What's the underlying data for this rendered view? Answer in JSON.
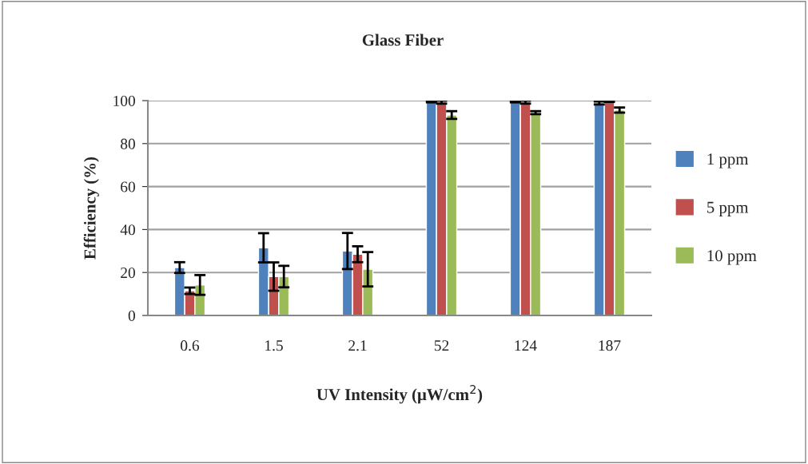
{
  "chart_data": {
    "type": "bar",
    "title": "Glass Fiber",
    "xlabel": "UV Intensity (μW/cm$^{2}$)",
    "ylabel": "Efficiency (%)",
    "categories": [
      "0.6",
      "1.5",
      "2.1",
      "52",
      "124",
      "187"
    ],
    "series": [
      {
        "name": "1 ppm",
        "color": "#4f81bd",
        "values": [
          22.3,
          31.5,
          30.0,
          99.6,
          99.6,
          98.9
        ],
        "errors": [
          2.5,
          6.8,
          8.4,
          0.4,
          0.4,
          0.7
        ]
      },
      {
        "name": "5 ppm",
        "color": "#c0504d",
        "values": [
          11.5,
          18.1,
          28.5,
          99.3,
          99.3,
          99.7
        ],
        "errors": [
          1.5,
          6.6,
          3.7,
          0.7,
          0.7,
          0.3
        ]
      },
      {
        "name": "10 ppm",
        "color": "#9bbb59",
        "values": [
          14.2,
          18.1,
          21.5,
          93.3,
          94.4,
          95.6
        ],
        "errors": [
          4.6,
          5.0,
          8.0,
          1.8,
          0.7,
          1.2
        ]
      }
    ],
    "ylim": [
      0,
      100
    ],
    "yticks": [
      0,
      20,
      40,
      60,
      80,
      100
    ],
    "grid": "y",
    "legend": "right"
  }
}
